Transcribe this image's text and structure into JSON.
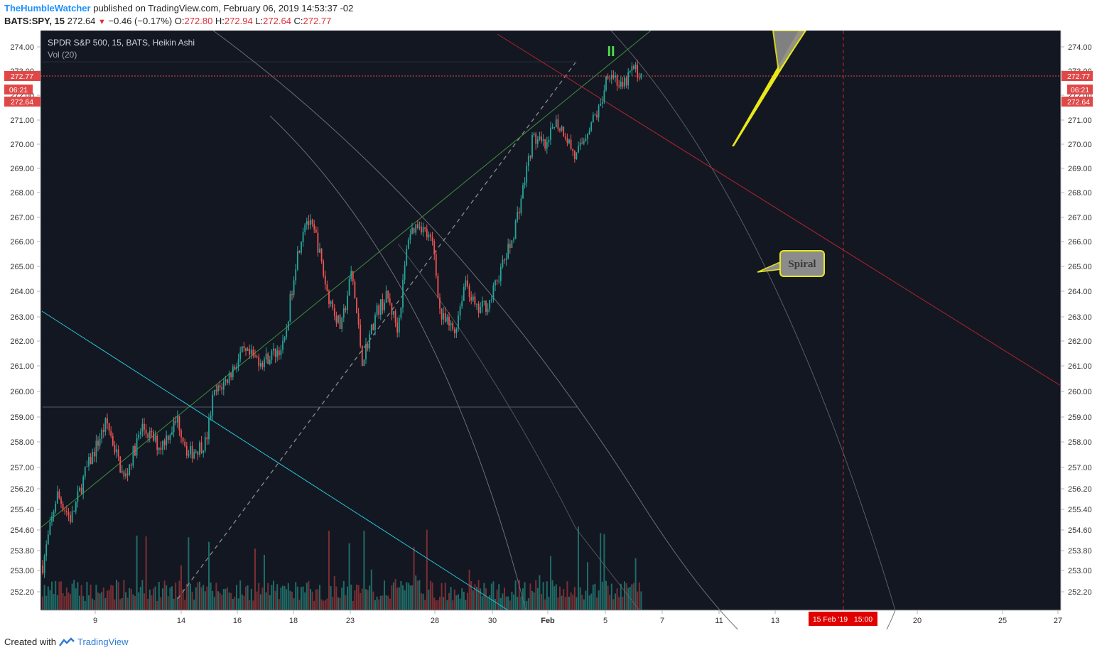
{
  "header": {
    "author": "TheHumbleWatcher",
    "published_text": "published on TradingView.com, February 06, 2019 14:53:37 -02",
    "symbol": "BATS:SPY, 15",
    "last_price": "272.64",
    "change": "−0.46 (−0.17%)",
    "open_label": "O:",
    "open": "272.80",
    "high_label": "H:",
    "high": "272.94",
    "low_label": "L:",
    "low": "272.64",
    "close_label": "C:",
    "close": "272.77"
  },
  "chart": {
    "legend_title": "SPDR S&P 500, 15, BATS, Heikin Ashi",
    "legend_volume": "Vol (20)",
    "price_badge": "272.77",
    "countdown_badge": "06:21",
    "low_badge": "272.64",
    "wave_label": "II",
    "callout_text": "Spiral",
    "date_badge": "15 Feb '19   15:00",
    "price_labels": [
      "274.00",
      "273.00",
      "272.00",
      "271.00",
      "270.00",
      "269.00",
      "268.00",
      "267.00",
      "266.00",
      "265.00",
      "264.00",
      "263.00",
      "262.00",
      "261.00",
      "260.00",
      "259.00",
      "258.00",
      "257.00",
      "256.20",
      "255.40",
      "254.60",
      "253.80",
      "253.00",
      "252.20"
    ],
    "time_labels": [
      "9",
      "14",
      "16",
      "18",
      "23",
      "28",
      "30",
      "Feb",
      "5",
      "7",
      "11",
      "13",
      "20",
      "25",
      "27"
    ],
    "colors": {
      "background": "#131722",
      "up": "#26a69a",
      "down": "#ef5350",
      "up_vol": "#1f6b66",
      "down_vol": "#7a2f33",
      "trend_red": "#b0242e",
      "trend_green": "#3c8f3c",
      "trend_cyan": "#26c6da",
      "arc_gray": "#6b6e78",
      "arrow_yellow": "#e8e81a",
      "badge_red": "#e04848",
      "wave_green": "#4cdf4c"
    }
  }
}
